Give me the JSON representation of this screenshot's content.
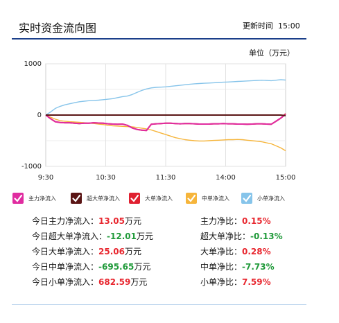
{
  "header": {
    "title": "实时资金流向图",
    "update_label": "更新时间",
    "update_time": "15:00",
    "unit": "单位（万元）"
  },
  "chart_data": {
    "type": "line",
    "x_ticks": [
      "9:30",
      "10:30",
      "11:30",
      "14:00",
      "15:00"
    ],
    "y_ticks": [
      "1000",
      "0",
      "-1000"
    ],
    "ylim": [
      -1000,
      1000
    ],
    "grid": true,
    "series": [
      {
        "name": "主力净流入",
        "color": "#e02ca0",
        "values": [
          0,
          -70,
          -130,
          -145,
          -150,
          -150,
          -160,
          -165,
          -160,
          -160,
          -150,
          -155,
          -160,
          -170,
          -175,
          -180,
          -175,
          -200,
          -250,
          -280,
          -295,
          -300,
          -180,
          -170,
          -165,
          -160,
          -160,
          -165,
          -170,
          -165,
          -165,
          -170,
          -175,
          -175,
          -175,
          -170,
          -170,
          -165,
          -170,
          -170,
          -175,
          -175,
          -180,
          -175,
          -170,
          -170,
          -175,
          -180,
          -120,
          -60,
          13
        ]
      },
      {
        "name": "超大单净流入",
        "color": "#5a1515",
        "values": [
          0,
          0,
          0,
          0,
          0,
          0,
          0,
          0,
          0,
          0,
          0,
          0,
          0,
          0,
          0,
          0,
          0,
          0,
          0,
          0,
          0,
          0,
          0,
          0,
          0,
          0,
          0,
          0,
          0,
          0,
          0,
          0,
          0,
          0,
          0,
          0,
          0,
          0,
          0,
          0,
          0,
          0,
          0,
          0,
          0,
          0,
          0,
          0,
          0,
          0,
          -12
        ]
      },
      {
        "name": "大单净流入",
        "color": "#e02030",
        "values": [
          0,
          -70,
          -130,
          -145,
          -150,
          -150,
          -160,
          -165,
          -160,
          -160,
          -150,
          -155,
          -160,
          -170,
          -175,
          -180,
          -175,
          -200,
          -250,
          -280,
          -295,
          -300,
          -180,
          -170,
          -165,
          -160,
          -160,
          -165,
          -170,
          -165,
          -165,
          -170,
          -175,
          -175,
          -175,
          -170,
          -170,
          -165,
          -170,
          -170,
          -175,
          -175,
          -180,
          -175,
          -170,
          -170,
          -175,
          -180,
          -120,
          -60,
          25
        ]
      },
      {
        "name": "中单净流入",
        "color": "#f6b53b",
        "values": [
          0,
          -40,
          -80,
          -110,
          -120,
          -130,
          -135,
          -140,
          -150,
          -160,
          -165,
          -175,
          -185,
          -200,
          -210,
          -215,
          -220,
          -225,
          -230,
          -240,
          -255,
          -270,
          -290,
          -320,
          -350,
          -380,
          -410,
          -440,
          -460,
          -480,
          -490,
          -500,
          -505,
          -505,
          -500,
          -495,
          -490,
          -485,
          -480,
          -480,
          -475,
          -480,
          -490,
          -500,
          -510,
          -520,
          -540,
          -560,
          -600,
          -640,
          -696
        ]
      },
      {
        "name": "小单净流入",
        "color": "#86c4ea",
        "values": [
          0,
          60,
          130,
          170,
          200,
          220,
          240,
          260,
          270,
          280,
          285,
          290,
          300,
          310,
          320,
          340,
          360,
          370,
          400,
          440,
          480,
          510,
          530,
          540,
          545,
          550,
          560,
          570,
          580,
          590,
          600,
          610,
          615,
          620,
          625,
          630,
          635,
          640,
          645,
          650,
          655,
          660,
          665,
          670,
          675,
          680,
          675,
          670,
          680,
          690,
          683
        ]
      }
    ]
  },
  "legend": [
    {
      "label": "主力净流入",
      "color": "#e02ca0"
    },
    {
      "label": "超大单净流入",
      "color": "#5a1515"
    },
    {
      "label": "大单净流入",
      "color": "#e02030"
    },
    {
      "label": "中单净流入",
      "color": "#f6b53b"
    },
    {
      "label": "小单净流入",
      "color": "#86c4ea"
    }
  ],
  "stats": {
    "left": [
      {
        "label": "今日主力净流入：",
        "value": "13.05",
        "unit": "万元",
        "sign": "pos"
      },
      {
        "label": "今日超大单净流入：",
        "value": "-12.01",
        "unit": "万元",
        "sign": "neg"
      },
      {
        "label": "今日大单净流入：",
        "value": "25.06",
        "unit": "万元",
        "sign": "pos"
      },
      {
        "label": "今日中单净流入：",
        "value": "-695.65",
        "unit": "万元",
        "sign": "neg"
      },
      {
        "label": "今日小单净流入：",
        "value": "682.59",
        "unit": "万元",
        "sign": "pos"
      }
    ],
    "right": [
      {
        "label": "主力净比：",
        "value": "0.15%",
        "sign": "pos"
      },
      {
        "label": "超大单净比：",
        "value": "-0.13%",
        "sign": "neg"
      },
      {
        "label": "大单净比：",
        "value": "0.28%",
        "sign": "pos"
      },
      {
        "label": "中单净比：",
        "value": "-7.73%",
        "sign": "neg"
      },
      {
        "label": "小单净比：",
        "value": "7.59%",
        "sign": "pos"
      }
    ]
  }
}
